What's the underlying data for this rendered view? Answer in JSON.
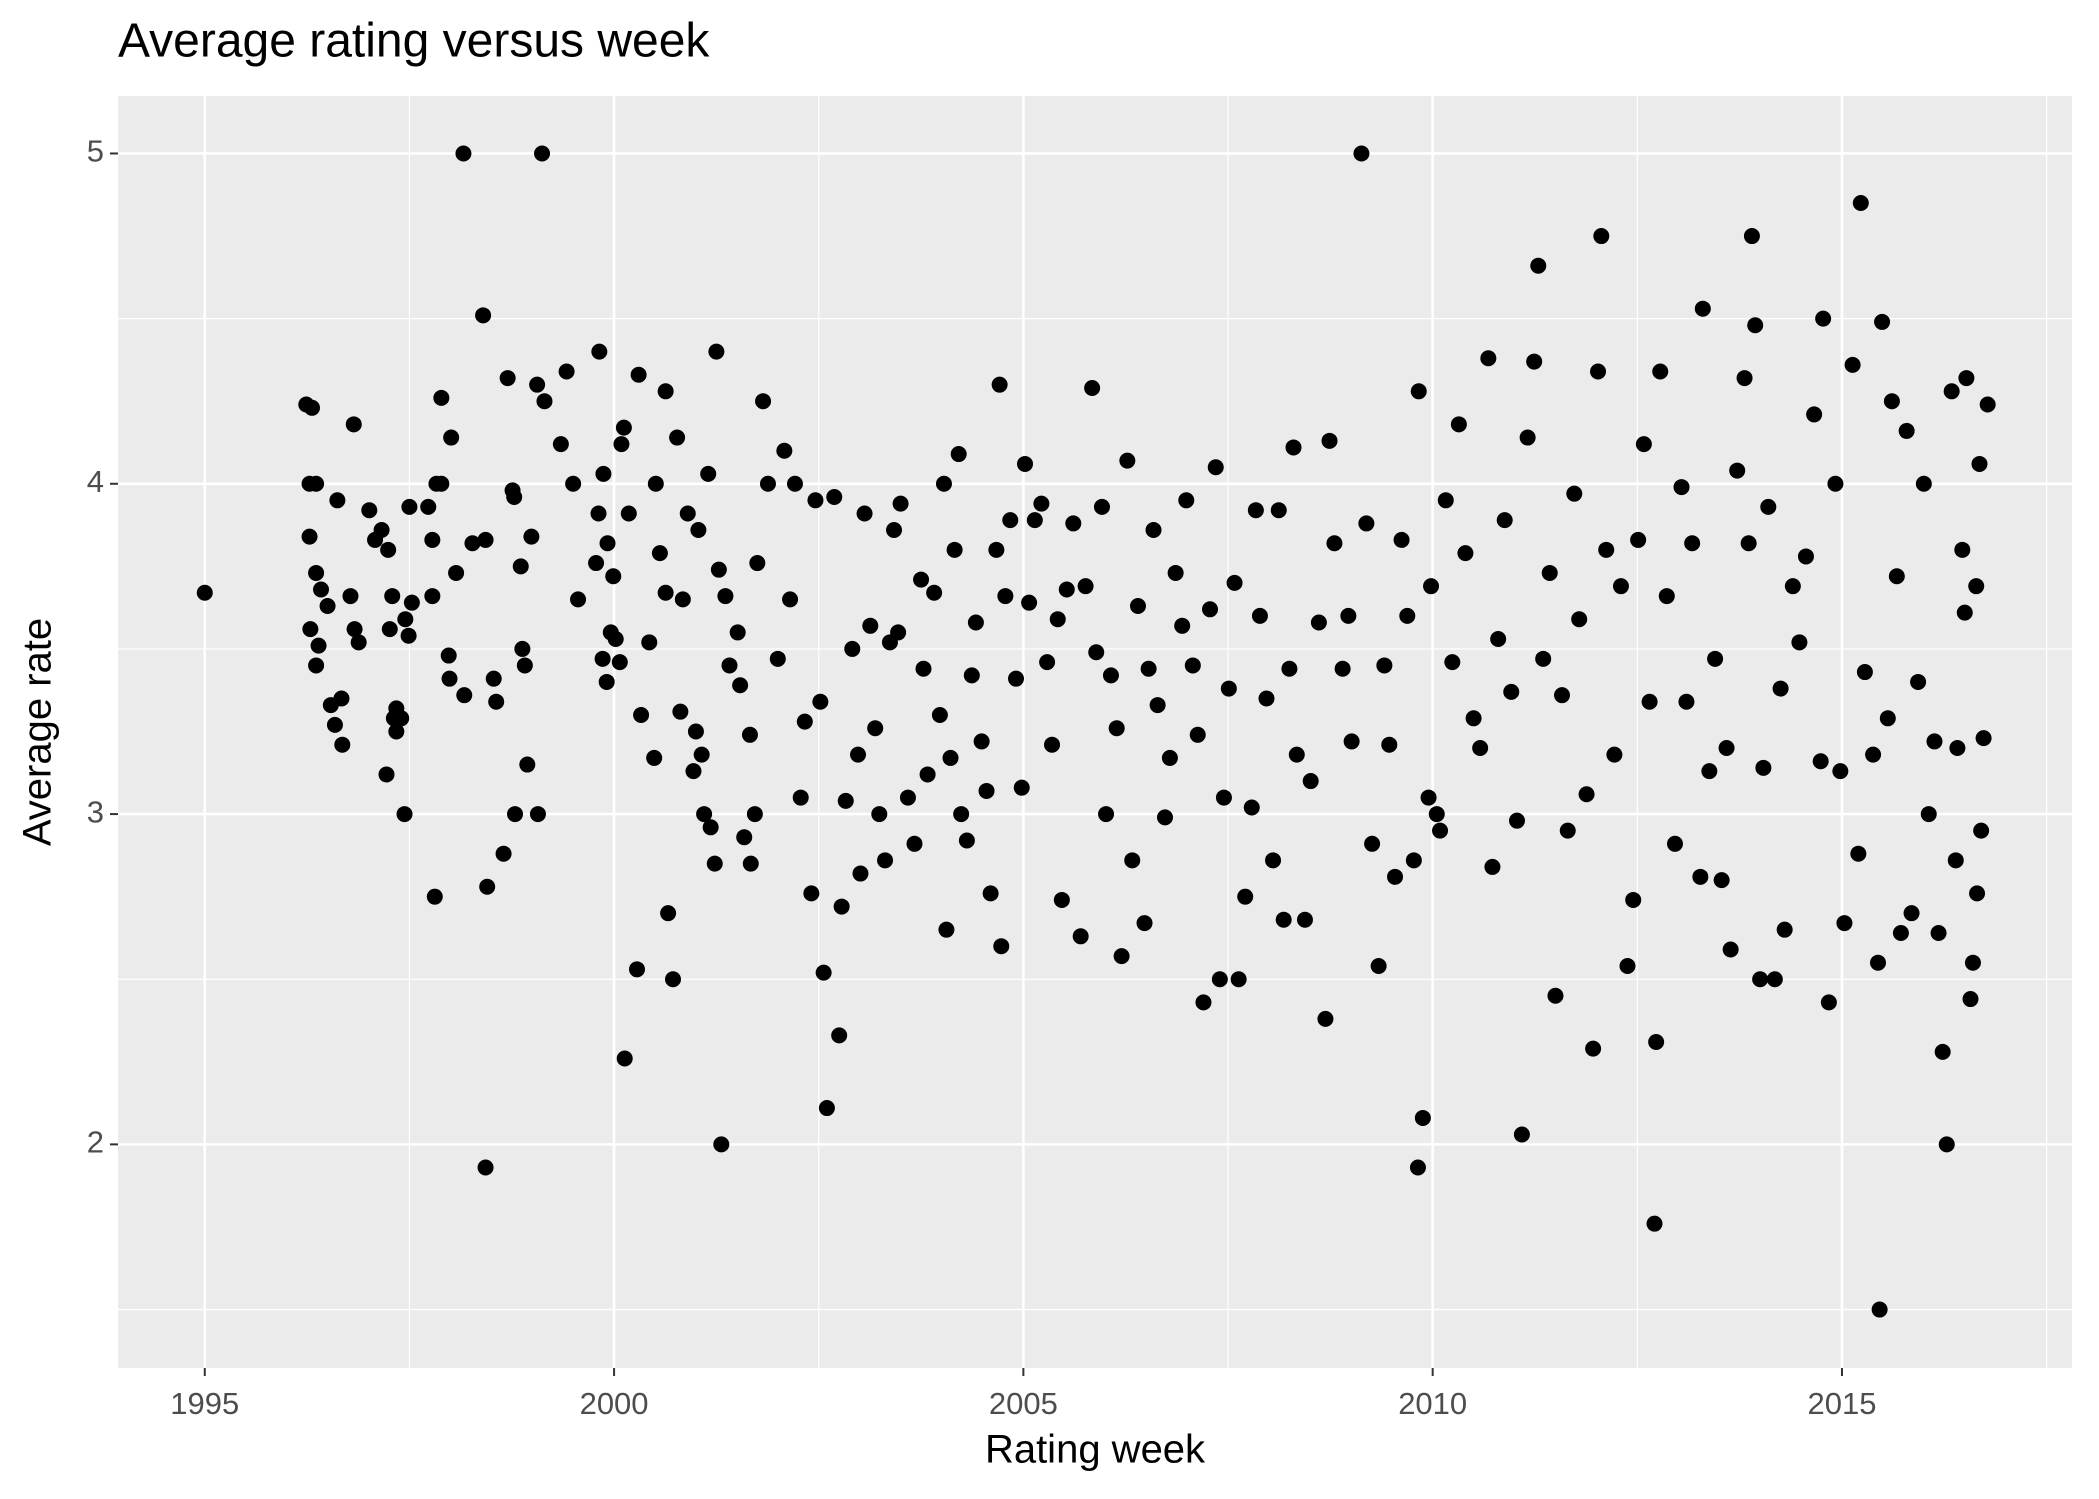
{
  "chart_data": {
    "type": "scatter",
    "title": "Average rating versus week",
    "x_label": "Rating week",
    "y_label": "Average rate",
    "xlim": [
      1993.94,
      2017.81
    ],
    "ylim": [
      1.323,
      5.174
    ],
    "xticks": [
      1995,
      2000,
      2005,
      2010,
      2015
    ],
    "yticks": [
      2,
      3,
      4,
      5
    ],
    "grid": true,
    "color": "#000000",
    "x": [
      1995.0,
      1996.24,
      1996.31,
      1996.28,
      1996.36,
      1996.28,
      1996.82,
      1996.62,
      1996.36,
      1996.42,
      1996.5,
      1996.29,
      1996.39,
      1996.36,
      1996.54,
      1996.59,
      1996.68,
      1996.67,
      1996.83,
      1996.78,
      1996.88,
      1997.01,
      1997.08,
      1997.16,
      1997.24,
      1997.26,
      1997.29,
      1997.34,
      1997.31,
      1997.22,
      1997.34,
      1997.4,
      1997.44,
      1997.45,
      1997.49,
      1997.5,
      1997.53,
      1997.78,
      1997.73,
      1997.78,
      1997.83,
      1997.89,
      1997.98,
      1997.99,
      1998.01,
      1998.07,
      1998.16,
      1998.17,
      1997.89,
      1997.81,
      1998.27,
      1998.4,
      1998.43,
      1998.43,
      1998.45,
      1998.53,
      1998.56,
      1998.65,
      1998.7,
      1998.76,
      1998.78,
      1998.79,
      1998.86,
      1998.88,
      1998.91,
      1998.94,
      1998.99,
      1999.06,
      1999.07,
      1999.12,
      1999.15,
      1999.35,
      1999.42,
      1999.5,
      1999.56,
      1999.78,
      1999.82,
      1999.81,
      1999.87,
      1999.92,
      1999.86,
      1999.91,
      1999.96,
      1999.99,
      2000.02,
      2000.07,
      2000.09,
      2000.12,
      2000.13,
      2000.18,
      2000.28,
      2000.3,
      2000.33,
      2000.43,
      2000.49,
      2000.51,
      2000.56,
      2000.63,
      2000.63,
      2000.66,
      2000.72,
      2000.77,
      2000.81,
      2000.84,
      2000.9,
      2000.97,
      2001.0,
      2001.03,
      2001.07,
      2001.1,
      2001.15,
      2001.18,
      2001.23,
      2001.25,
      2001.31,
      2001.28,
      2001.36,
      2001.41,
      2001.51,
      2001.54,
      2001.59,
      2001.66,
      2001.67,
      2001.72,
      2001.75,
      2001.82,
      2001.88,
      2002.0,
      2002.08,
      2002.15,
      2002.21,
      2002.28,
      2002.33,
      2002.41,
      2002.46,
      2002.52,
      2002.56,
      2002.6,
      2002.69,
      2002.75,
      2002.78,
      2002.83,
      2002.91,
      2002.98,
      2003.01,
      2003.06,
      2003.13,
      2003.19,
      2003.24,
      2003.31,
      2003.37,
      2003.42,
      2003.47,
      2003.5,
      2003.59,
      2003.67,
      2003.75,
      2003.78,
      2003.83,
      2003.91,
      2003.98,
      2004.03,
      2004.06,
      2004.11,
      2004.16,
      2004.21,
      2004.24,
      2004.31,
      2004.37,
      2004.42,
      2004.49,
      2004.55,
      2004.6,
      2004.67,
      2004.71,
      2004.73,
      2004.78,
      2004.84,
      2004.91,
      2004.98,
      2005.02,
      2005.07,
      2005.14,
      2005.22,
      2005.29,
      2005.35,
      2005.42,
      2005.47,
      2005.53,
      2005.61,
      2005.7,
      2005.76,
      2005.84,
      2005.89,
      2005.96,
      2006.01,
      2006.07,
      2006.14,
      2006.2,
      2006.27,
      2006.33,
      2006.4,
      2006.48,
      2006.53,
      2006.59,
      2006.64,
      2006.73,
      2006.79,
      2006.86,
      2006.94,
      2006.99,
      2007.07,
      2007.13,
      2007.2,
      2007.28,
      2007.35,
      2007.4,
      2007.45,
      2007.51,
      2007.58,
      2007.63,
      2007.71,
      2007.79,
      2007.84,
      2007.89,
      2007.97,
      2008.05,
      2008.12,
      2008.18,
      2008.25,
      2008.3,
      2008.34,
      2008.44,
      2008.51,
      2008.61,
      2008.69,
      2008.74,
      2008.8,
      2008.9,
      2008.97,
      2009.01,
      2009.13,
      2009.19,
      2009.26,
      2009.34,
      2009.41,
      2009.47,
      2009.54,
      2009.62,
      2009.69,
      2009.77,
      2009.82,
      2009.83,
      2009.88,
      2009.95,
      2009.98,
      2010.05,
      2010.09,
      2010.16,
      2010.24,
      2010.32,
      2010.4,
      2010.5,
      2010.58,
      2010.68,
      2010.73,
      2010.8,
      2010.88,
      2010.96,
      2011.03,
      2011.09,
      2011.16,
      2011.24,
      2011.29,
      2011.35,
      2011.43,
      2011.5,
      2011.58,
      2011.65,
      2011.73,
      2011.79,
      2011.88,
      2011.96,
      2012.02,
      2012.06,
      2012.12,
      2012.22,
      2012.3,
      2012.38,
      2012.45,
      2012.51,
      2012.58,
      2012.65,
      2012.71,
      2012.73,
      2012.78,
      2012.86,
      2012.96,
      2013.04,
      2013.1,
      2013.17,
      2013.27,
      2013.3,
      2013.38,
      2013.45,
      2013.53,
      2013.59,
      2013.64,
      2013.72,
      2013.81,
      2013.86,
      2013.9,
      2013.94,
      2014.0,
      2014.04,
      2014.1,
      2014.18,
      2014.25,
      2014.3,
      2014.4,
      2014.48,
      2014.56,
      2014.66,
      2014.74,
      2014.77,
      2014.84,
      2014.92,
      2014.98,
      2015.03,
      2015.13,
      2015.2,
      2015.23,
      2015.28,
      2015.38,
      2015.44,
      2015.46,
      2015.49,
      2015.56,
      2015.61,
      2015.67,
      2015.72,
      2015.79,
      2015.85,
      2015.93,
      2016.0,
      2016.06,
      2016.13,
      2016.18,
      2016.23,
      2016.28,
      2016.34,
      2016.41,
      2016.47,
      2016.52,
      2016.57,
      2016.65,
      2016.7,
      2016.73,
      2016.78,
      2016.68,
      2016.64,
      2016.6,
      2016.5,
      2016.39
    ],
    "values": [
      3.67,
      4.24,
      4.23,
      4.0,
      4.0,
      3.84,
      4.18,
      3.95,
      3.73,
      3.68,
      3.63,
      3.56,
      3.51,
      3.45,
      3.33,
      3.27,
      3.21,
      3.35,
      3.56,
      3.66,
      3.52,
      3.92,
      3.83,
      3.86,
      3.8,
      3.56,
      3.66,
      3.32,
      3.29,
      3.12,
      3.25,
      3.29,
      3.0,
      3.59,
      3.54,
      3.93,
      3.64,
      3.83,
      3.93,
      3.66,
      4.0,
      4.26,
      3.48,
      3.41,
      4.14,
      3.73,
      5.0,
      3.36,
      4.0,
      2.75,
      3.82,
      4.51,
      3.83,
      1.93,
      2.78,
      3.41,
      3.34,
      2.88,
      4.32,
      3.98,
      3.96,
      3.0,
      3.75,
      3.5,
      3.45,
      3.15,
      3.84,
      4.3,
      3.0,
      5.0,
      4.25,
      4.12,
      4.34,
      4.0,
      3.65,
      3.76,
      4.4,
      3.91,
      4.03,
      3.82,
      3.47,
      3.4,
      3.55,
      3.72,
      3.53,
      3.46,
      4.12,
      4.17,
      2.26,
      3.91,
      2.53,
      4.33,
      3.3,
      3.52,
      3.17,
      4.0,
      3.79,
      4.28,
      3.67,
      2.7,
      2.5,
      4.14,
      3.31,
      3.65,
      3.91,
      3.13,
      3.25,
      3.86,
      3.18,
      3.0,
      4.03,
      2.96,
      2.85,
      4.4,
      2.0,
      3.74,
      3.66,
      3.45,
      3.55,
      3.39,
      2.93,
      3.24,
      2.85,
      3.0,
      3.76,
      4.25,
      4.0,
      3.47,
      4.1,
      3.65,
      4.0,
      3.05,
      3.28,
      2.76,
      3.95,
      3.34,
      2.52,
      2.11,
      3.96,
      2.33,
      2.72,
      3.04,
      3.5,
      3.18,
      2.82,
      3.91,
      3.57,
      3.26,
      3.0,
      2.86,
      3.52,
      3.86,
      3.55,
      3.94,
      3.05,
      2.91,
      3.71,
      3.44,
      3.12,
      3.67,
      3.3,
      4.0,
      2.65,
      3.17,
      3.8,
      4.09,
      3.0,
      2.92,
      3.42,
      3.58,
      3.22,
      3.07,
      2.76,
      3.8,
      4.3,
      2.6,
      3.66,
      3.89,
      3.41,
      3.08,
      4.06,
      3.64,
      3.89,
      3.94,
      3.46,
      3.21,
      3.59,
      2.74,
      3.68,
      3.88,
      2.63,
      3.69,
      4.29,
      3.49,
      3.93,
      3.0,
      3.42,
      3.26,
      2.57,
      4.07,
      2.86,
      3.63,
      2.67,
      3.44,
      3.86,
      3.33,
      2.99,
      3.17,
      3.73,
      3.57,
      3.95,
      3.45,
      3.24,
      2.43,
      3.62,
      4.05,
      2.5,
      3.05,
      3.38,
      3.7,
      2.5,
      2.75,
      3.02,
      3.92,
      3.6,
      3.35,
      2.86,
      3.92,
      2.68,
      3.44,
      4.11,
      3.18,
      2.68,
      3.1,
      3.58,
      2.38,
      4.13,
      3.82,
      3.44,
      3.6,
      3.22,
      5.0,
      3.88,
      2.91,
      2.54,
      3.45,
      3.21,
      2.81,
      3.83,
      3.6,
      2.86,
      1.93,
      4.28,
      2.08,
      3.05,
      3.69,
      3.0,
      2.95,
      3.95,
      3.46,
      4.18,
      3.79,
      3.29,
      3.2,
      4.38,
      2.84,
      3.53,
      3.89,
      3.37,
      2.98,
      2.03,
      4.14,
      4.37,
      4.66,
      3.47,
      3.73,
      2.45,
      3.36,
      2.95,
      3.97,
      3.59,
      3.06,
      2.29,
      4.34,
      4.75,
      3.8,
      3.18,
      3.69,
      2.54,
      2.74,
      3.83,
      4.12,
      3.34,
      1.76,
      2.31,
      4.34,
      3.66,
      2.91,
      3.99,
      3.34,
      3.82,
      2.81,
      4.53,
      3.13,
      3.47,
      2.8,
      3.2,
      2.59,
      4.04,
      4.32,
      3.82,
      4.75,
      4.48,
      2.5,
      3.14,
      3.93,
      2.5,
      3.38,
      2.65,
      3.69,
      3.52,
      3.78,
      4.21,
      3.16,
      4.5,
      2.43,
      4.0,
      3.13,
      2.67,
      4.36,
      2.88,
      4.85,
      3.43,
      3.18,
      2.55,
      1.5,
      4.49,
      3.29,
      4.25,
      3.72,
      2.64,
      4.16,
      2.7,
      3.4,
      4.0,
      3.0,
      3.22,
      2.64,
      2.28,
      2.0,
      4.28,
      3.2,
      3.8,
      4.32,
      2.44,
      2.76,
      2.95,
      3.23,
      4.24,
      4.06,
      3.69,
      2.55,
      3.61,
      2.86
    ]
  }
}
